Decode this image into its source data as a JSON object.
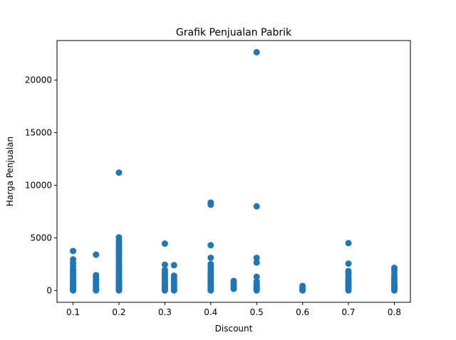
{
  "chart_data": {
    "type": "scatter",
    "title": "Grafik Penjualan Pabrik",
    "xlabel": "Discount",
    "ylabel": "Harga Penjualan",
    "xlim": [
      0.065,
      0.835
    ],
    "ylim": [
      -1130,
      23760
    ],
    "x_ticks": [
      0.1,
      0.2,
      0.3,
      0.4,
      0.5,
      0.6,
      0.7,
      0.8
    ],
    "x_tick_labels": [
      "0.1",
      "0.2",
      "0.3",
      "0.4",
      "0.5",
      "0.6",
      "0.7",
      "0.8"
    ],
    "y_ticks": [
      0,
      5000,
      10000,
      15000,
      20000
    ],
    "y_tick_labels": [
      "0",
      "5000",
      "10000",
      "15000",
      "20000"
    ],
    "grid": false,
    "marker_color": "#1f77b4",
    "series": [
      {
        "points": [
          [
            0.1,
            0
          ],
          [
            0.1,
            60
          ],
          [
            0.1,
            120
          ],
          [
            0.1,
            200
          ],
          [
            0.1,
            300
          ],
          [
            0.1,
            400
          ],
          [
            0.1,
            520
          ],
          [
            0.1,
            650
          ],
          [
            0.1,
            800
          ],
          [
            0.1,
            950
          ],
          [
            0.1,
            1100
          ],
          [
            0.1,
            1300
          ],
          [
            0.1,
            1500
          ],
          [
            0.1,
            1750
          ],
          [
            0.1,
            2000
          ],
          [
            0.1,
            2300
          ],
          [
            0.1,
            2600
          ],
          [
            0.1,
            2950
          ],
          [
            0.1,
            3750
          ],
          [
            0.15,
            0
          ],
          [
            0.15,
            80
          ],
          [
            0.15,
            180
          ],
          [
            0.15,
            300
          ],
          [
            0.15,
            450
          ],
          [
            0.15,
            600
          ],
          [
            0.15,
            750
          ],
          [
            0.15,
            900
          ],
          [
            0.15,
            1100
          ],
          [
            0.15,
            1300
          ],
          [
            0.15,
            1450
          ],
          [
            0.15,
            3400
          ],
          [
            0.2,
            0
          ],
          [
            0.2,
            50
          ],
          [
            0.2,
            100
          ],
          [
            0.2,
            150
          ],
          [
            0.2,
            200
          ],
          [
            0.2,
            270
          ],
          [
            0.2,
            340
          ],
          [
            0.2,
            420
          ],
          [
            0.2,
            500
          ],
          [
            0.2,
            600
          ],
          [
            0.2,
            700
          ],
          [
            0.2,
            800
          ],
          [
            0.2,
            900
          ],
          [
            0.2,
            1000
          ],
          [
            0.2,
            1100
          ],
          [
            0.2,
            1250
          ],
          [
            0.2,
            1400
          ],
          [
            0.2,
            1550
          ],
          [
            0.2,
            1700
          ],
          [
            0.2,
            1850
          ],
          [
            0.2,
            2000
          ],
          [
            0.2,
            2150
          ],
          [
            0.2,
            2300
          ],
          [
            0.2,
            2500
          ],
          [
            0.2,
            2700
          ],
          [
            0.2,
            2900
          ],
          [
            0.2,
            3100
          ],
          [
            0.2,
            3300
          ],
          [
            0.2,
            3500
          ],
          [
            0.2,
            3700
          ],
          [
            0.2,
            3900
          ],
          [
            0.2,
            4100
          ],
          [
            0.2,
            4300
          ],
          [
            0.2,
            4500
          ],
          [
            0.2,
            4750
          ],
          [
            0.2,
            5050
          ],
          [
            0.2,
            11200
          ],
          [
            0.3,
            0
          ],
          [
            0.3,
            80
          ],
          [
            0.3,
            180
          ],
          [
            0.3,
            300
          ],
          [
            0.3,
            420
          ],
          [
            0.3,
            550
          ],
          [
            0.3,
            700
          ],
          [
            0.3,
            850
          ],
          [
            0.3,
            1000
          ],
          [
            0.3,
            1150
          ],
          [
            0.3,
            1300
          ],
          [
            0.3,
            1500
          ],
          [
            0.3,
            1700
          ],
          [
            0.3,
            1950
          ],
          [
            0.3,
            2450
          ],
          [
            0.3,
            4450
          ],
          [
            0.32,
            0
          ],
          [
            0.32,
            100
          ],
          [
            0.32,
            220
          ],
          [
            0.32,
            350
          ],
          [
            0.32,
            500
          ],
          [
            0.32,
            650
          ],
          [
            0.32,
            800
          ],
          [
            0.32,
            1000
          ],
          [
            0.32,
            1200
          ],
          [
            0.32,
            1400
          ],
          [
            0.32,
            2400
          ],
          [
            0.4,
            0
          ],
          [
            0.4,
            60
          ],
          [
            0.4,
            130
          ],
          [
            0.4,
            200
          ],
          [
            0.4,
            290
          ],
          [
            0.4,
            380
          ],
          [
            0.4,
            480
          ],
          [
            0.4,
            600
          ],
          [
            0.4,
            720
          ],
          [
            0.4,
            850
          ],
          [
            0.4,
            1000
          ],
          [
            0.4,
            1150
          ],
          [
            0.4,
            1300
          ],
          [
            0.4,
            1450
          ],
          [
            0.4,
            1600
          ],
          [
            0.4,
            1800
          ],
          [
            0.4,
            2000
          ],
          [
            0.4,
            2200
          ],
          [
            0.4,
            2500
          ],
          [
            0.4,
            3100
          ],
          [
            0.4,
            4300
          ],
          [
            0.4,
            8150
          ],
          [
            0.4,
            8350
          ],
          [
            0.45,
            150
          ],
          [
            0.45,
            300
          ],
          [
            0.45,
            500
          ],
          [
            0.45,
            700
          ],
          [
            0.45,
            900
          ],
          [
            0.5,
            0
          ],
          [
            0.5,
            80
          ],
          [
            0.5,
            180
          ],
          [
            0.5,
            300
          ],
          [
            0.5,
            420
          ],
          [
            0.5,
            550
          ],
          [
            0.5,
            700
          ],
          [
            0.5,
            850
          ],
          [
            0.5,
            1300
          ],
          [
            0.5,
            2650
          ],
          [
            0.5,
            3100
          ],
          [
            0.5,
            8000
          ],
          [
            0.5,
            22650
          ],
          [
            0.6,
            0
          ],
          [
            0.6,
            50
          ],
          [
            0.6,
            100
          ],
          [
            0.6,
            160
          ],
          [
            0.6,
            230
          ],
          [
            0.6,
            320
          ],
          [
            0.6,
            430
          ],
          [
            0.7,
            0
          ],
          [
            0.7,
            60
          ],
          [
            0.7,
            130
          ],
          [
            0.7,
            210
          ],
          [
            0.7,
            300
          ],
          [
            0.7,
            400
          ],
          [
            0.7,
            520
          ],
          [
            0.7,
            650
          ],
          [
            0.7,
            800
          ],
          [
            0.7,
            950
          ],
          [
            0.7,
            1150
          ],
          [
            0.7,
            1400
          ],
          [
            0.7,
            1650
          ],
          [
            0.7,
            1850
          ],
          [
            0.7,
            2550
          ],
          [
            0.7,
            4500
          ],
          [
            0.8,
            0
          ],
          [
            0.8,
            60
          ],
          [
            0.8,
            130
          ],
          [
            0.8,
            220
          ],
          [
            0.8,
            330
          ],
          [
            0.8,
            450
          ],
          [
            0.8,
            600
          ],
          [
            0.8,
            800
          ],
          [
            0.8,
            1050
          ],
          [
            0.8,
            1300
          ],
          [
            0.8,
            1550
          ],
          [
            0.8,
            1900
          ],
          [
            0.8,
            2150
          ]
        ]
      }
    ]
  }
}
